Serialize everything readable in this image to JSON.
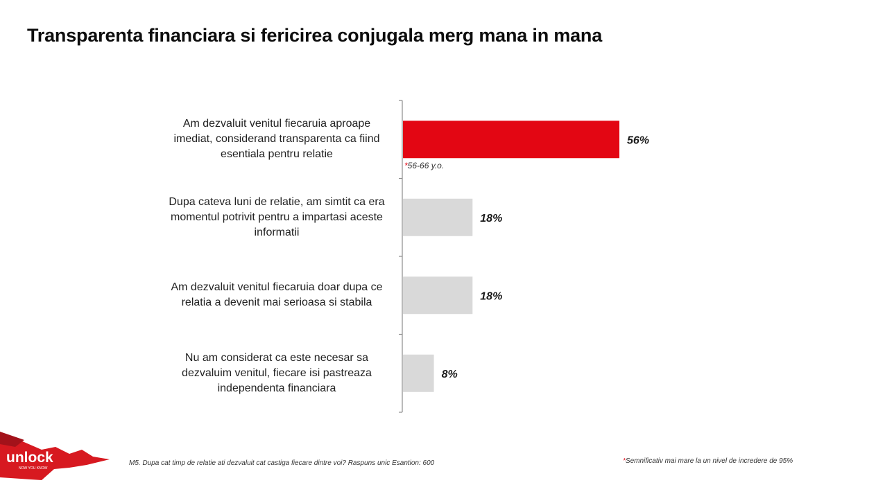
{
  "title": "Transparenta financiara si fericirea conjugala merg mana in mana",
  "chart_data": {
    "type": "bar",
    "orientation": "horizontal",
    "categories": [
      "Am dezvaluit venitul fiecaruia aproape imediat, considerand transparenta ca fiind esentiala pentru relatie",
      "Dupa cateva luni de relatie, am simtit ca era momentul potrivit pentru a impartasi aceste informatii",
      "Am dezvaluit venitul fiecaruia doar dupa ce relatia a devenit mai serioasa si stabila",
      "Nu am considerat ca este necesar sa dezvaluim venitul, fiecare isi pastreaza independenta financiara"
    ],
    "values": [
      56,
      18,
      18,
      8
    ],
    "value_labels": [
      "56%",
      "18%",
      "18%",
      "8%"
    ],
    "highlight_index": 0,
    "colors": {
      "highlight": "#e30613",
      "default": "#d9d9d9",
      "axis": "#8c8c8c"
    },
    "bar_note": {
      "star": "*",
      "text": "56-66 y.o."
    }
  },
  "footer": {
    "source": "M5. Dupa cat timp de relatie ati dezvaluit cat castiga fiecare dintre voi? Raspuns unic Esantion: 600",
    "significance_star": "*",
    "significance": "Semnificativ mai mare la un nivel de incredere de 95%"
  },
  "logo": {
    "name": "unlock",
    "tagline": "NOW YOU KNOW"
  }
}
